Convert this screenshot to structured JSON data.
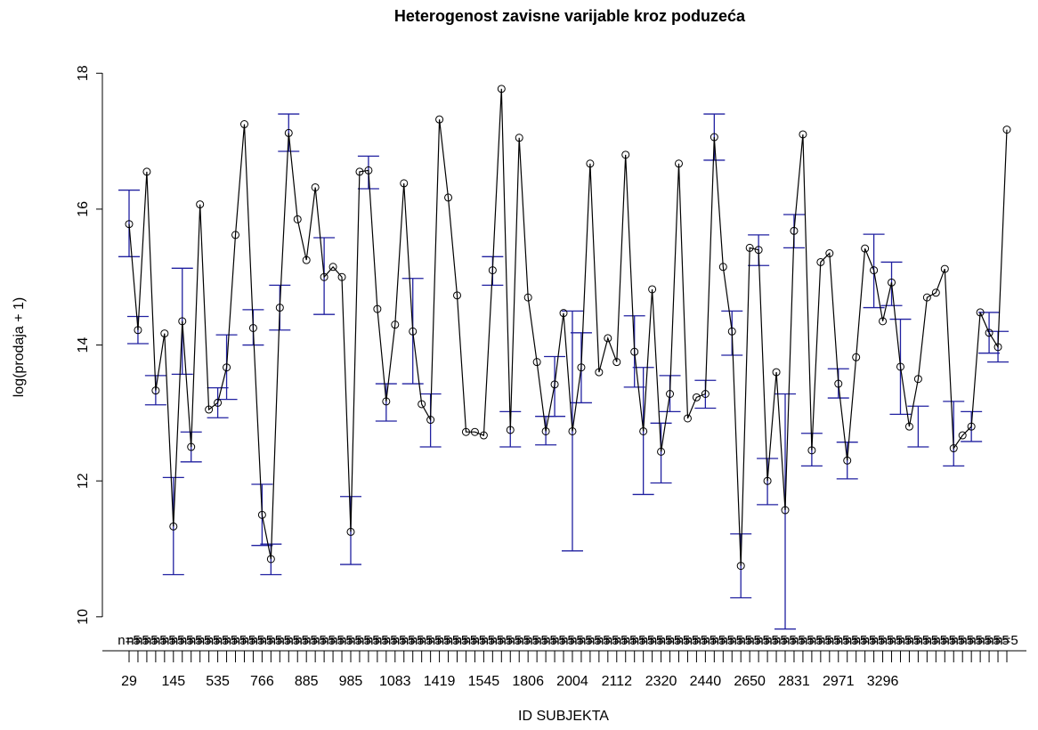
{
  "chart_data": {
    "type": "line",
    "title": "Heterogenost zavisne varijable kroz poduzeća",
    "x_label": "ID  SUBJEKTA",
    "y_label": "log(prodaja + 1)",
    "categories": [
      "29",
      null,
      null,
      null,
      null,
      "145",
      null,
      null,
      null,
      null,
      "535",
      null,
      null,
      null,
      null,
      "766",
      null,
      null,
      null,
      null,
      "885",
      null,
      null,
      null,
      null,
      "985",
      null,
      null,
      null,
      null,
      "1083",
      null,
      null,
      null,
      null,
      "1419",
      null,
      null,
      null,
      null,
      "1545",
      null,
      null,
      null,
      null,
      "1806",
      null,
      null,
      null,
      null,
      "2004",
      null,
      null,
      null,
      null,
      "2112",
      null,
      null,
      null,
      null,
      "2320",
      null,
      null,
      null,
      null,
      "2440",
      null,
      null,
      null,
      null,
      "2650",
      null,
      null,
      null,
      null,
      "2831",
      null,
      null,
      null,
      null,
      "2971",
      null,
      null,
      null,
      null,
      "3296",
      null,
      null,
      null,
      null,
      null,
      null,
      null,
      null,
      null,
      null,
      null,
      null,
      null,
      null
    ],
    "series": [
      {
        "color": "#000000",
        "values": [
          15.78,
          14.22,
          16.55,
          13.33,
          14.17,
          11.33,
          14.35,
          12.5,
          16.07,
          13.05,
          13.15,
          13.67,
          15.62,
          17.25,
          14.25,
          11.5,
          10.85,
          14.55,
          17.12,
          15.85,
          15.25,
          16.32,
          15.0,
          15.15,
          15.0,
          11.25,
          16.55,
          16.57,
          14.53,
          13.17,
          14.3,
          16.38,
          14.2,
          13.13,
          12.9,
          17.32,
          16.17,
          14.73,
          12.72,
          12.72,
          12.67,
          15.1,
          17.77,
          12.75,
          17.05,
          14.7,
          13.75,
          12.73,
          13.42,
          14.47,
          12.73,
          13.67,
          16.67,
          13.6,
          14.1,
          13.75,
          16.8,
          13.9,
          12.73,
          14.82,
          12.43,
          13.28,
          16.67,
          12.92,
          13.23,
          13.28,
          17.06,
          15.15,
          14.2,
          10.75,
          15.43,
          15.4,
          12.0,
          13.6,
          11.57,
          15.68,
          17.1,
          12.45,
          15.22,
          15.35,
          13.43,
          12.3,
          13.82,
          15.42,
          15.1,
          14.35,
          14.92,
          13.68,
          12.8,
          13.5,
          14.7,
          14.77,
          15.12,
          12.48,
          12.67,
          12.8,
          14.48,
          14.18,
          13.97,
          17.17
        ]
      }
    ],
    "ci_color": "#2020a0",
    "ci_lower": [
      15.3,
      14.02,
      null,
      13.12,
      null,
      10.62,
      13.57,
      12.28,
      null,
      null,
      12.93,
      13.2,
      null,
      null,
      14.0,
      11.05,
      10.62,
      14.22,
      16.85,
      null,
      null,
      null,
      14.45,
      null,
      null,
      10.77,
      null,
      16.3,
      null,
      12.88,
      null,
      null,
      13.43,
      null,
      12.5,
      null,
      null,
      null,
      null,
      null,
      null,
      14.88,
      null,
      12.5,
      null,
      null,
      null,
      12.53,
      12.95,
      null,
      10.97,
      13.15,
      null,
      null,
      null,
      null,
      null,
      13.38,
      11.8,
      null,
      11.97,
      13.02,
      null,
      null,
      null,
      13.07,
      16.72,
      null,
      13.85,
      10.28,
      null,
      15.17,
      11.65,
      null,
      9.82,
      15.43,
      null,
      12.22,
      null,
      null,
      13.22,
      12.03,
      null,
      null,
      14.55,
      null,
      14.58,
      12.98,
      null,
      12.5,
      null,
      null,
      null,
      12.22,
      null,
      12.58,
      null,
      13.88,
      13.75,
      null
    ],
    "ci_upper": [
      16.28,
      14.42,
      null,
      13.55,
      null,
      12.05,
      15.13,
      12.72,
      null,
      null,
      13.37,
      14.15,
      null,
      null,
      14.52,
      11.95,
      11.07,
      14.88,
      17.4,
      null,
      null,
      null,
      15.58,
      null,
      null,
      11.77,
      null,
      16.78,
      null,
      13.43,
      null,
      null,
      14.98,
      null,
      13.28,
      null,
      null,
      null,
      null,
      null,
      null,
      15.3,
      null,
      13.02,
      null,
      null,
      null,
      12.95,
      13.83,
      null,
      14.5,
      14.18,
      null,
      null,
      null,
      null,
      null,
      14.43,
      13.67,
      null,
      12.85,
      13.55,
      null,
      null,
      null,
      13.48,
      17.4,
      null,
      14.5,
      11.22,
      null,
      15.62,
      12.33,
      null,
      13.28,
      15.92,
      null,
      12.7,
      null,
      null,
      13.65,
      12.57,
      null,
      null,
      15.63,
      null,
      15.22,
      14.38,
      null,
      13.1,
      null,
      null,
      null,
      13.17,
      null,
      13.02,
      null,
      14.48,
      14.2,
      null
    ],
    "n_label": "n=5",
    "ylim": [
      9.5,
      18.2
    ],
    "yticks": [
      10,
      12,
      14,
      16,
      18
    ]
  }
}
